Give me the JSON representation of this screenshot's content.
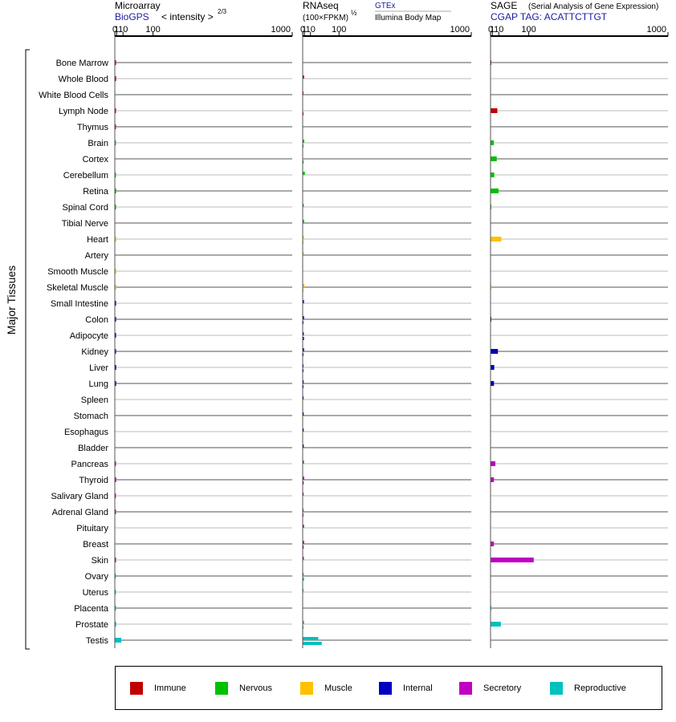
{
  "colors": {
    "immune": "#c00000",
    "nervous": "#00c000",
    "muscle": "#ffc000",
    "internal": "#0000c0",
    "secretory": "#c000c0",
    "reproductive": "#00c0c0"
  },
  "y_axis_label": "Major Tissues",
  "panels": {
    "microarray": {
      "title": "Microarray",
      "link": "BioGPS",
      "scale_note": "< intensity >",
      "exponent": "2/3"
    },
    "rnaseq": {
      "title": "RNAseq",
      "unit_note": "(100×FPKM)",
      "exponent": "½",
      "link1": "GTEx",
      "link2": "Illumina Body Map"
    },
    "sage": {
      "title": "SAGE",
      "subtitle": "(Serial Analysis of Gene Expression)",
      "tag": "CGAP TAG: ACATTCTTGT"
    }
  },
  "legend": [
    {
      "name": "Immune",
      "color": "#c00000"
    },
    {
      "name": "Nervous",
      "color": "#00c000"
    },
    {
      "name": "Muscle",
      "color": "#ffc000"
    },
    {
      "name": "Internal",
      "color": "#0000c0"
    },
    {
      "name": "Secretory",
      "color": "#c000c0"
    },
    {
      "name": "Reproductive",
      "color": "#00c0c0"
    }
  ],
  "chart_data": {
    "type": "bar",
    "x_ticks": [
      "0",
      "1",
      "10",
      "100",
      "1000"
    ],
    "tissues": [
      {
        "name": "Bone Marrow",
        "group": "immune",
        "microarray": 0.6,
        "gtex": null,
        "ibm": null,
        "sage": 0.05
      },
      {
        "name": "Whole Blood",
        "group": "immune",
        "microarray": 0.65,
        "gtex": 0.8,
        "ibm": null,
        "sage": null
      },
      {
        "name": "White Blood Cells",
        "group": "immune",
        "microarray": null,
        "gtex": 0.02,
        "ibm": null,
        "sage": null
      },
      {
        "name": "Lymph Node",
        "group": "immune",
        "microarray": 0.55,
        "gtex": null,
        "ibm": 0.02,
        "sage": 7.5
      },
      {
        "name": "Thymus",
        "group": "immune",
        "microarray": 0.5,
        "gtex": null,
        "ibm": null,
        "sage": null
      },
      {
        "name": "Brain",
        "group": "nervous",
        "microarray": 0.5,
        "gtex": 0.95,
        "ibm": 0.3,
        "sage": 2.5
      },
      {
        "name": "Cortex",
        "group": "nervous",
        "microarray": null,
        "gtex": null,
        "ibm": 0.4,
        "sage": 6.5
      },
      {
        "name": "Cerebellum",
        "group": "nervous",
        "microarray": 0.5,
        "gtex": 1.5,
        "ibm": null,
        "sage": 3.0
      },
      {
        "name": "Retina",
        "group": "nervous",
        "microarray": 0.7,
        "gtex": null,
        "ibm": null,
        "sage": 9.5
      },
      {
        "name": "Spinal Cord",
        "group": "nervous",
        "microarray": 0.6,
        "gtex": 0.55,
        "ibm": null,
        "sage": 0.03
      },
      {
        "name": "Tibial Nerve",
        "group": "nervous",
        "microarray": null,
        "gtex": 0.8,
        "ibm": null,
        "sage": null
      },
      {
        "name": "Heart",
        "group": "muscle",
        "microarray": 0.7,
        "gtex": 0.6,
        "ibm": 0.02,
        "sage": 15.0
      },
      {
        "name": "Artery",
        "group": "muscle",
        "microarray": null,
        "gtex": 0.55,
        "ibm": null,
        "sage": null
      },
      {
        "name": "Smooth Muscle",
        "group": "muscle",
        "microarray": 0.65,
        "gtex": null,
        "ibm": null,
        "sage": null
      },
      {
        "name": "Skeletal Muscle",
        "group": "muscle",
        "microarray": 0.75,
        "gtex": 1.1,
        "ibm": 0.02,
        "sage": 0.02
      },
      {
        "name": "Small Intestine",
        "group": "internal",
        "microarray": 0.6,
        "gtex": 0.7,
        "ibm": null,
        "sage": null
      },
      {
        "name": "Colon",
        "group": "internal",
        "microarray": 0.6,
        "gtex": 0.75,
        "ibm": 0.03,
        "sage": 0.03
      },
      {
        "name": "Adipocyte",
        "group": "internal",
        "microarray": 0.6,
        "gtex": 0.55,
        "ibm": 0.7,
        "sage": null
      },
      {
        "name": "Kidney",
        "group": "internal",
        "microarray": 0.55,
        "gtex": 0.75,
        "ibm": 0.03,
        "sage": 8.5
      },
      {
        "name": "Liver",
        "group": "internal",
        "microarray": 0.7,
        "gtex": 0.3,
        "ibm": 0.03,
        "sage": 3.0
      },
      {
        "name": "Lung",
        "group": "internal",
        "microarray": 0.65,
        "gtex": 0.45,
        "ibm": 0.03,
        "sage": 2.7
      },
      {
        "name": "Spleen",
        "group": "internal",
        "microarray": null,
        "gtex": 0.4,
        "ibm": null,
        "sage": null
      },
      {
        "name": "Stomach",
        "group": "internal",
        "microarray": null,
        "gtex": 0.5,
        "ibm": null,
        "sage": null
      },
      {
        "name": "Esophagus",
        "group": "internal",
        "microarray": null,
        "gtex": 0.5,
        "ibm": null,
        "sage": null
      },
      {
        "name": "Bladder",
        "group": "internal",
        "microarray": null,
        "gtex": 0.55,
        "ibm": null,
        "sage": null
      },
      {
        "name": "Pancreas",
        "group": "secretory",
        "microarray": 0.55,
        "gtex": 0.65,
        "ibm": null,
        "sage": 4.5
      },
      {
        "name": "Thyroid",
        "group": "secretory",
        "microarray": 0.7,
        "gtex": 0.9,
        "ibm": 0.5,
        "sage": 2.6
      },
      {
        "name": "Salivary Gland",
        "group": "secretory",
        "microarray": 0.5,
        "gtex": 0.45,
        "ibm": null,
        "sage": null
      },
      {
        "name": "Adrenal Gland",
        "group": "secretory",
        "microarray": 0.55,
        "gtex": 0.35,
        "ibm": 0.2,
        "sage": null
      },
      {
        "name": "Pituitary",
        "group": "secretory",
        "microarray": null,
        "gtex": 0.75,
        "ibm": null,
        "sage": null
      },
      {
        "name": "Breast",
        "group": "secretory",
        "microarray": null,
        "gtex": 0.85,
        "ibm": 0.5,
        "sage": 2.6
      },
      {
        "name": "Skin",
        "group": "secretory",
        "microarray": 0.6,
        "gtex": 0.6,
        "ibm": null,
        "sage": 120.0
      },
      {
        "name": "Ovary",
        "group": "reproductive",
        "microarray": 0.45,
        "gtex": 0.5,
        "ibm": 0.75,
        "sage": null
      },
      {
        "name": "Uterus",
        "group": "reproductive",
        "microarray": 0.5,
        "gtex": 0.35,
        "ibm": null,
        "sage": null
      },
      {
        "name": "Placenta",
        "group": "reproductive",
        "microarray": 0.6,
        "gtex": null,
        "ibm": null,
        "sage": 0.02
      },
      {
        "name": "Prostate",
        "group": "reproductive",
        "microarray": 0.65,
        "gtex": 0.75,
        "ibm": 0.03,
        "sage": 14.0
      },
      {
        "name": "Testis",
        "group": "reproductive",
        "microarray": 7.0,
        "gtex": 28.0,
        "ibm": 38.0,
        "sage": null
      }
    ]
  }
}
